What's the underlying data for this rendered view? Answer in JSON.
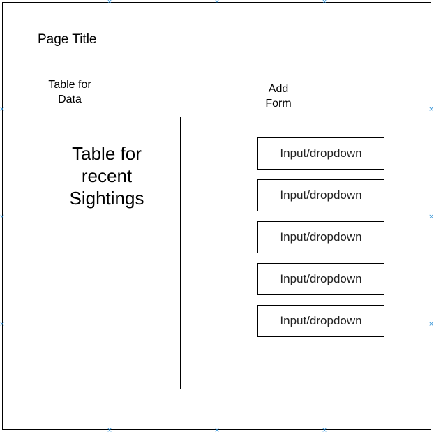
{
  "page_title": "Page Title",
  "table_caption": {
    "line1": "Table for",
    "line2": "Data"
  },
  "table_box": {
    "line1": "Table for",
    "line2": "recent",
    "line3": "Sightings"
  },
  "form_caption": {
    "line1": "Add",
    "line2": "Form"
  },
  "inputs": [
    {
      "label": "Input/dropdown"
    },
    {
      "label": "Input/dropdown"
    },
    {
      "label": "Input/dropdown"
    },
    {
      "label": "Input/dropdown"
    },
    {
      "label": "Input/dropdown"
    }
  ],
  "handle_glyph": "×",
  "colors": {
    "stroke": "#000000",
    "handle": "#2b8fd6",
    "background": "#ffffff"
  }
}
